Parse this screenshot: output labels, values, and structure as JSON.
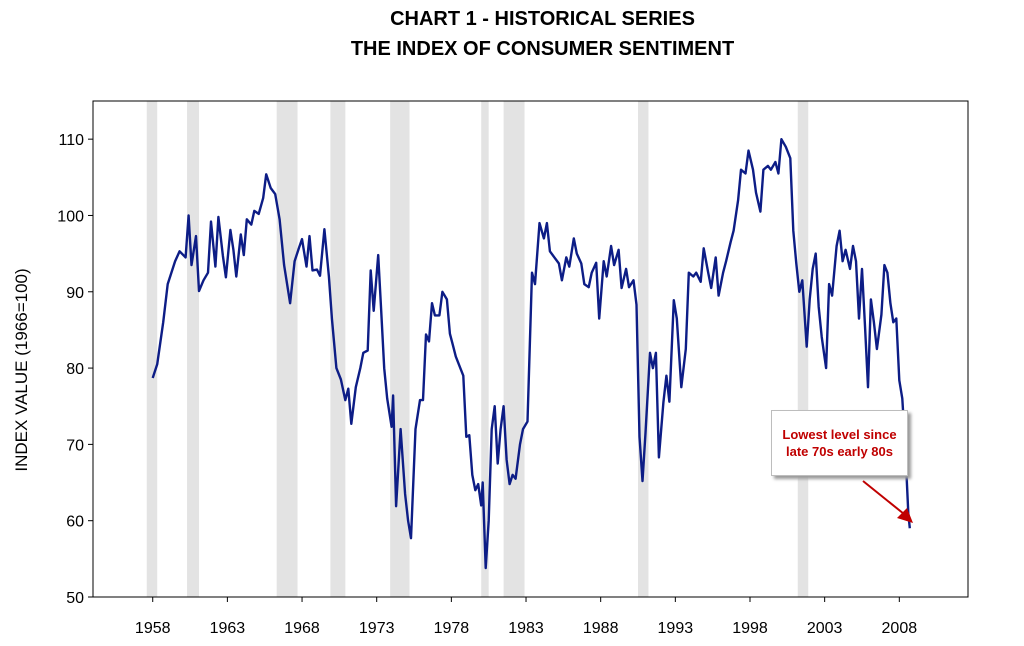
{
  "chart_data": {
    "type": "line",
    "title": "CHART 1 - HISTORICAL SERIES",
    "subtitle": "THE INDEX OF CONSUMER SENTIMENT",
    "xlabel": "",
    "ylabel": "INDEX VALUE (1966=100)",
    "ylim": [
      50,
      115
    ],
    "xlim": [
      1954,
      2012.6
    ],
    "yticks": [
      50,
      60,
      70,
      80,
      90,
      100,
      110
    ],
    "xticks": [
      "1958",
      "1963",
      "1968",
      "1973",
      "1978",
      "1983",
      "1988",
      "1993",
      "1998",
      "2003",
      "2008"
    ],
    "grid": false,
    "line_color": "#0d1d86",
    "recession_color": "#e3e3e3",
    "recessions": [
      [
        1957.6,
        1958.3
      ],
      [
        1960.3,
        1961.1
      ],
      [
        1969.9,
        1970.9
      ],
      [
        1973.9,
        1975.2
      ],
      [
        1980.0,
        1980.5
      ],
      [
        1981.5,
        1982.9
      ],
      [
        1990.5,
        1991.2
      ],
      [
        2001.2,
        2001.9
      ],
      [
        1966.3,
        1967.7
      ]
    ],
    "series": [
      {
        "values": [
          [
            1958.0,
            78.7
          ],
          [
            1958.3,
            80.5
          ],
          [
            1958.7,
            86
          ],
          [
            1959.0,
            91
          ],
          [
            1959.5,
            94
          ],
          [
            1959.8,
            95.3
          ],
          [
            1960.2,
            94.5
          ],
          [
            1960.4,
            100
          ],
          [
            1960.6,
            93.5
          ],
          [
            1960.9,
            97.3
          ],
          [
            1961.1,
            90.1
          ],
          [
            1961.4,
            91.5
          ],
          [
            1961.7,
            92.5
          ],
          [
            1961.9,
            99.2
          ],
          [
            1962.2,
            93.3
          ],
          [
            1962.4,
            99.8
          ],
          [
            1962.7,
            94.7
          ],
          [
            1962.9,
            91.9
          ],
          [
            1963.2,
            98.1
          ],
          [
            1963.4,
            95.5
          ],
          [
            1963.6,
            92.0
          ],
          [
            1963.9,
            97.5
          ],
          [
            1964.1,
            94.8
          ],
          [
            1964.3,
            99.5
          ],
          [
            1964.6,
            98.8
          ],
          [
            1964.8,
            100.6
          ],
          [
            1965.1,
            100.2
          ],
          [
            1965.4,
            102.3
          ],
          [
            1965.6,
            105.4
          ],
          [
            1965.9,
            103.6
          ],
          [
            1966.2,
            102.8
          ],
          [
            1966.5,
            99.5
          ],
          [
            1966.8,
            93.5
          ],
          [
            1967.2,
            88.5
          ],
          [
            1967.5,
            94.0
          ],
          [
            1967.8,
            95.8
          ],
          [
            1968.0,
            96.9
          ],
          [
            1968.3,
            93.3
          ],
          [
            1968.5,
            97.3
          ],
          [
            1968.7,
            92.8
          ],
          [
            1969.0,
            92.9
          ],
          [
            1969.2,
            92.1
          ],
          [
            1969.5,
            98.2
          ],
          [
            1969.8,
            92.0
          ],
          [
            1970.0,
            86.5
          ],
          [
            1970.3,
            80.0
          ],
          [
            1970.6,
            78.5
          ],
          [
            1970.9,
            75.8
          ],
          [
            1971.1,
            77.3
          ],
          [
            1971.3,
            72.7
          ],
          [
            1971.6,
            77.5
          ],
          [
            1971.9,
            80.0
          ],
          [
            1972.1,
            82.0
          ],
          [
            1972.4,
            82.3
          ],
          [
            1972.6,
            92.8
          ],
          [
            1972.8,
            87.5
          ],
          [
            1973.1,
            94.8
          ],
          [
            1973.3,
            87.5
          ],
          [
            1973.5,
            80.0
          ],
          [
            1973.7,
            76.0
          ],
          [
            1974.0,
            72.3
          ],
          [
            1974.1,
            76.4
          ],
          [
            1974.3,
            61.9
          ],
          [
            1974.6,
            72.0
          ],
          [
            1974.9,
            63.5
          ],
          [
            1975.1,
            60.0
          ],
          [
            1975.3,
            57.7
          ],
          [
            1975.6,
            72.0
          ],
          [
            1975.9,
            75.8
          ],
          [
            1976.1,
            75.8
          ],
          [
            1976.3,
            84.4
          ],
          [
            1976.5,
            83.5
          ],
          [
            1976.7,
            88.5
          ],
          [
            1976.9,
            86.9
          ],
          [
            1977.2,
            86.9
          ],
          [
            1977.4,
            90.0
          ],
          [
            1977.7,
            89.0
          ],
          [
            1977.9,
            84.5
          ],
          [
            1978.1,
            83.0
          ],
          [
            1978.3,
            81.5
          ],
          [
            1978.6,
            80.0
          ],
          [
            1978.8,
            79.0
          ],
          [
            1979.0,
            71.0
          ],
          [
            1979.2,
            71.2
          ],
          [
            1979.4,
            66.0
          ],
          [
            1979.6,
            64.0
          ],
          [
            1979.8,
            64.8
          ],
          [
            1980.0,
            62.0
          ],
          [
            1980.1,
            65.0
          ],
          [
            1980.3,
            53.8
          ],
          [
            1980.5,
            60.0
          ],
          [
            1980.7,
            72.0
          ],
          [
            1980.9,
            75.0
          ],
          [
            1981.1,
            67.5
          ],
          [
            1981.3,
            72.0
          ],
          [
            1981.5,
            75.0
          ],
          [
            1981.7,
            68.0
          ],
          [
            1981.9,
            64.8
          ],
          [
            1982.1,
            66.0
          ],
          [
            1982.3,
            65.5
          ],
          [
            1982.6,
            70.0
          ],
          [
            1982.8,
            72.0
          ],
          [
            1983.1,
            73.0
          ],
          [
            1983.4,
            92.5
          ],
          [
            1983.6,
            91.0
          ],
          [
            1983.9,
            99.0
          ],
          [
            1984.2,
            97.0
          ],
          [
            1984.4,
            99.0
          ],
          [
            1984.6,
            95.3
          ],
          [
            1984.9,
            94.5
          ],
          [
            1985.2,
            93.7
          ],
          [
            1985.4,
            91.5
          ],
          [
            1985.7,
            94.5
          ],
          [
            1985.9,
            93.3
          ],
          [
            1986.2,
            97.0
          ],
          [
            1986.4,
            95.0
          ],
          [
            1986.7,
            93.7
          ],
          [
            1986.9,
            91.0
          ],
          [
            1987.2,
            90.6
          ],
          [
            1987.4,
            92.5
          ],
          [
            1987.7,
            93.8
          ],
          [
            1987.9,
            86.5
          ],
          [
            1988.2,
            94.0
          ],
          [
            1988.4,
            92.0
          ],
          [
            1988.7,
            96.0
          ],
          [
            1988.9,
            93.5
          ],
          [
            1989.2,
            95.5
          ],
          [
            1989.4,
            90.5
          ],
          [
            1989.7,
            93.0
          ],
          [
            1989.9,
            90.6
          ],
          [
            1990.2,
            91.5
          ],
          [
            1990.4,
            88.3
          ],
          [
            1990.6,
            71.0
          ],
          [
            1990.8,
            65.2
          ],
          [
            1991.0,
            71.5
          ],
          [
            1991.3,
            82.0
          ],
          [
            1991.5,
            80.0
          ],
          [
            1991.7,
            82.0
          ],
          [
            1991.9,
            68.3
          ],
          [
            1992.2,
            75.5
          ],
          [
            1992.4,
            79.0
          ],
          [
            1992.6,
            75.6
          ],
          [
            1992.9,
            88.9
          ],
          [
            1993.1,
            86.5
          ],
          [
            1993.4,
            77.5
          ],
          [
            1993.7,
            82.5
          ],
          [
            1993.9,
            92.5
          ],
          [
            1994.2,
            92.0
          ],
          [
            1994.4,
            92.5
          ],
          [
            1994.7,
            91.3
          ],
          [
            1994.9,
            95.7
          ],
          [
            1995.2,
            92.5
          ],
          [
            1995.4,
            90.5
          ],
          [
            1995.7,
            94.5
          ],
          [
            1995.9,
            89.5
          ],
          [
            1996.2,
            92.5
          ],
          [
            1996.4,
            94.0
          ],
          [
            1996.7,
            96.5
          ],
          [
            1996.9,
            98.0
          ],
          [
            1997.2,
            102.0
          ],
          [
            1997.4,
            106.0
          ],
          [
            1997.7,
            105.5
          ],
          [
            1997.9,
            108.5
          ],
          [
            1998.2,
            106.0
          ],
          [
            1998.4,
            103.0
          ],
          [
            1998.7,
            100.5
          ],
          [
            1998.9,
            106.0
          ],
          [
            1999.2,
            106.5
          ],
          [
            1999.4,
            106.0
          ],
          [
            1999.7,
            107.0
          ],
          [
            1999.9,
            105.5
          ],
          [
            2000.1,
            110.0
          ],
          [
            2000.4,
            109.0
          ],
          [
            2000.7,
            107.5
          ],
          [
            2000.9,
            98.0
          ],
          [
            2001.1,
            93.7
          ],
          [
            2001.3,
            90.0
          ],
          [
            2001.5,
            91.5
          ],
          [
            2001.8,
            82.8
          ],
          [
            2002.0,
            89.0
          ],
          [
            2002.2,
            93.0
          ],
          [
            2002.4,
            95.0
          ],
          [
            2002.6,
            88.0
          ],
          [
            2002.8,
            84.1
          ],
          [
            2003.1,
            80.0
          ],
          [
            2003.3,
            91.0
          ],
          [
            2003.5,
            89.5
          ],
          [
            2003.8,
            96.0
          ],
          [
            2004.0,
            98.0
          ],
          [
            2004.2,
            94.0
          ],
          [
            2004.4,
            95.5
          ],
          [
            2004.7,
            93.0
          ],
          [
            2004.9,
            96.0
          ],
          [
            2005.1,
            94.0
          ],
          [
            2005.3,
            86.5
          ],
          [
            2005.5,
            93.0
          ],
          [
            2005.7,
            85.5
          ],
          [
            2005.9,
            77.5
          ],
          [
            2006.1,
            89.0
          ],
          [
            2006.3,
            86.0
          ],
          [
            2006.5,
            82.5
          ],
          [
            2006.8,
            87.0
          ],
          [
            2007.0,
            93.5
          ],
          [
            2007.2,
            92.5
          ],
          [
            2007.4,
            88.5
          ],
          [
            2007.6,
            86.0
          ],
          [
            2007.8,
            86.5
          ],
          [
            2008.0,
            78.4
          ],
          [
            2008.2,
            76.0
          ],
          [
            2008.4,
            69.5
          ],
          [
            2008.6,
            61.0
          ],
          [
            2008.7,
            59.0
          ]
        ]
      }
    ],
    "annotations": [
      {
        "text_lines": [
          "Lowest level since",
          "late 70s early 80s"
        ],
        "color": "#c00000"
      }
    ]
  }
}
